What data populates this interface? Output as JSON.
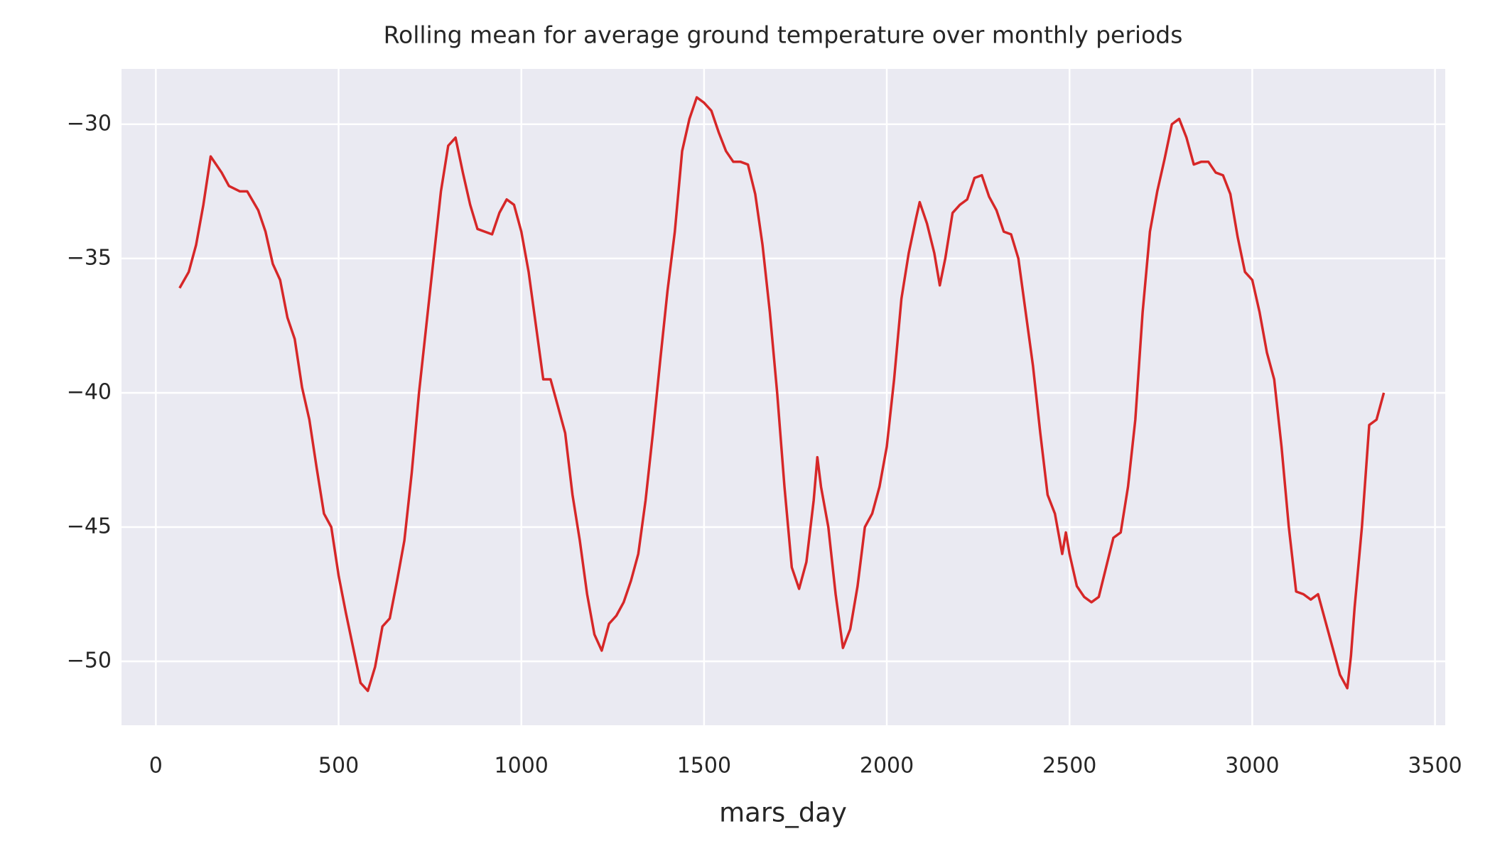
{
  "chart_data": {
    "type": "line",
    "title": "Rolling mean for average ground temperature over monthly periods",
    "x_label": "mars_day",
    "xlim": [
      -94,
      3528
    ],
    "ylim": [
      -52.38,
      -27.94
    ],
    "xticks": [
      0,
      500,
      1000,
      1500,
      2000,
      2500,
      3000,
      3500
    ],
    "yticks": [
      {
        "value": -50,
        "label": "−50"
      },
      {
        "value": -45,
        "label": "−45"
      },
      {
        "value": -40,
        "label": "−40"
      },
      {
        "value": -35,
        "label": "−35"
      },
      {
        "value": -30,
        "label": "−30"
      }
    ],
    "grid": true,
    "series": [
      {
        "color": "#d62728",
        "x": [
          65,
          90,
          110,
          130,
          150,
          180,
          200,
          230,
          250,
          280,
          300,
          320,
          340,
          360,
          380,
          400,
          420,
          440,
          460,
          480,
          500,
          520,
          540,
          560,
          580,
          600,
          620,
          640,
          660,
          680,
          700,
          720,
          740,
          760,
          780,
          800,
          820,
          840,
          860,
          880,
          900,
          920,
          940,
          960,
          980,
          1000,
          1020,
          1040,
          1060,
          1080,
          1100,
          1120,
          1140,
          1160,
          1180,
          1200,
          1220,
          1240,
          1260,
          1280,
          1300,
          1320,
          1340,
          1360,
          1380,
          1400,
          1420,
          1440,
          1460,
          1480,
          1500,
          1520,
          1540,
          1560,
          1580,
          1600,
          1620,
          1640,
          1660,
          1680,
          1700,
          1720,
          1740,
          1760,
          1780,
          1800,
          1810,
          1820,
          1840,
          1860,
          1880,
          1900,
          1920,
          1940,
          1960,
          1980,
          2000,
          2020,
          2040,
          2060,
          2080,
          2090,
          2110,
          2130,
          2145,
          2160,
          2180,
          2200,
          2220,
          2240,
          2260,
          2280,
          2300,
          2320,
          2340,
          2360,
          2380,
          2400,
          2420,
          2440,
          2460,
          2480,
          2490,
          2500,
          2520,
          2540,
          2560,
          2580,
          2600,
          2620,
          2640,
          2660,
          2680,
          2700,
          2720,
          2740,
          2760,
          2780,
          2800,
          2820,
          2840,
          2860,
          2880,
          2900,
          2920,
          2940,
          2960,
          2980,
          3000,
          3020,
          3040,
          3060,
          3080,
          3100,
          3120,
          3140,
          3160,
          3180,
          3200,
          3220,
          3240,
          3260,
          3270,
          3280,
          3300,
          3320,
          3340,
          3360
        ],
        "values": [
          -36.1,
          -35.5,
          -34.5,
          -33,
          -31.2,
          -31.8,
          -32.3,
          -32.5,
          -32.5,
          -33.2,
          -34,
          -35.2,
          -35.8,
          -37.2,
          -38,
          -39.8,
          -41,
          -42.8,
          -44.5,
          -45,
          -46.8,
          -48.2,
          -49.5,
          -50.8,
          -51.1,
          -50.2,
          -48.7,
          -48.4,
          -47,
          -45.5,
          -43,
          -40,
          -37.5,
          -35,
          -32.5,
          -30.8,
          -30.5,
          -31.8,
          -33,
          -33.9,
          -34,
          -34.1,
          -33.3,
          -32.8,
          -33,
          -34,
          -35.5,
          -37.5,
          -39.5,
          -39.5,
          -40.5,
          -41.5,
          -43.8,
          -45.5,
          -47.5,
          -49,
          -49.6,
          -48.6,
          -48.3,
          -47.8,
          -47,
          -46,
          -44,
          -41.5,
          -38.8,
          -36.2,
          -34,
          -31,
          -29.8,
          -29,
          -29.2,
          -29.5,
          -30.3,
          -31,
          -31.4,
          -31.4,
          -31.5,
          -32.6,
          -34.5,
          -37,
          -40,
          -43.5,
          -46.5,
          -47.3,
          -46.3,
          -44,
          -42.4,
          -43.5,
          -45,
          -47.5,
          -49.5,
          -48.8,
          -47.2,
          -45,
          -44.5,
          -43.5,
          -42,
          -39.5,
          -36.5,
          -34.8,
          -33.5,
          -32.9,
          -33.7,
          -34.8,
          -36,
          -35,
          -33.3,
          -33,
          -32.8,
          -32,
          -31.9,
          -32.7,
          -33.2,
          -34,
          -34.1,
          -35,
          -37,
          -39,
          -41.5,
          -43.8,
          -44.5,
          -46,
          -45.2,
          -46,
          -47.2,
          -47.6,
          -47.8,
          -47.6,
          -46.5,
          -45.4,
          -45.2,
          -43.5,
          -41,
          -37,
          -34,
          -32.5,
          -31.3,
          -30,
          -29.8,
          -30.5,
          -31.5,
          -31.4,
          -31.4,
          -31.8,
          -31.9,
          -32.6,
          -34.2,
          -35.5,
          -35.8,
          -37,
          -38.5,
          -39.5,
          -42,
          -45,
          -47.4,
          -47.5,
          -47.7,
          -47.5,
          -48.5,
          -49.5,
          -50.5,
          -51,
          -49.8,
          -48,
          -45,
          -41.2,
          -41,
          -40
        ]
      }
    ]
  }
}
